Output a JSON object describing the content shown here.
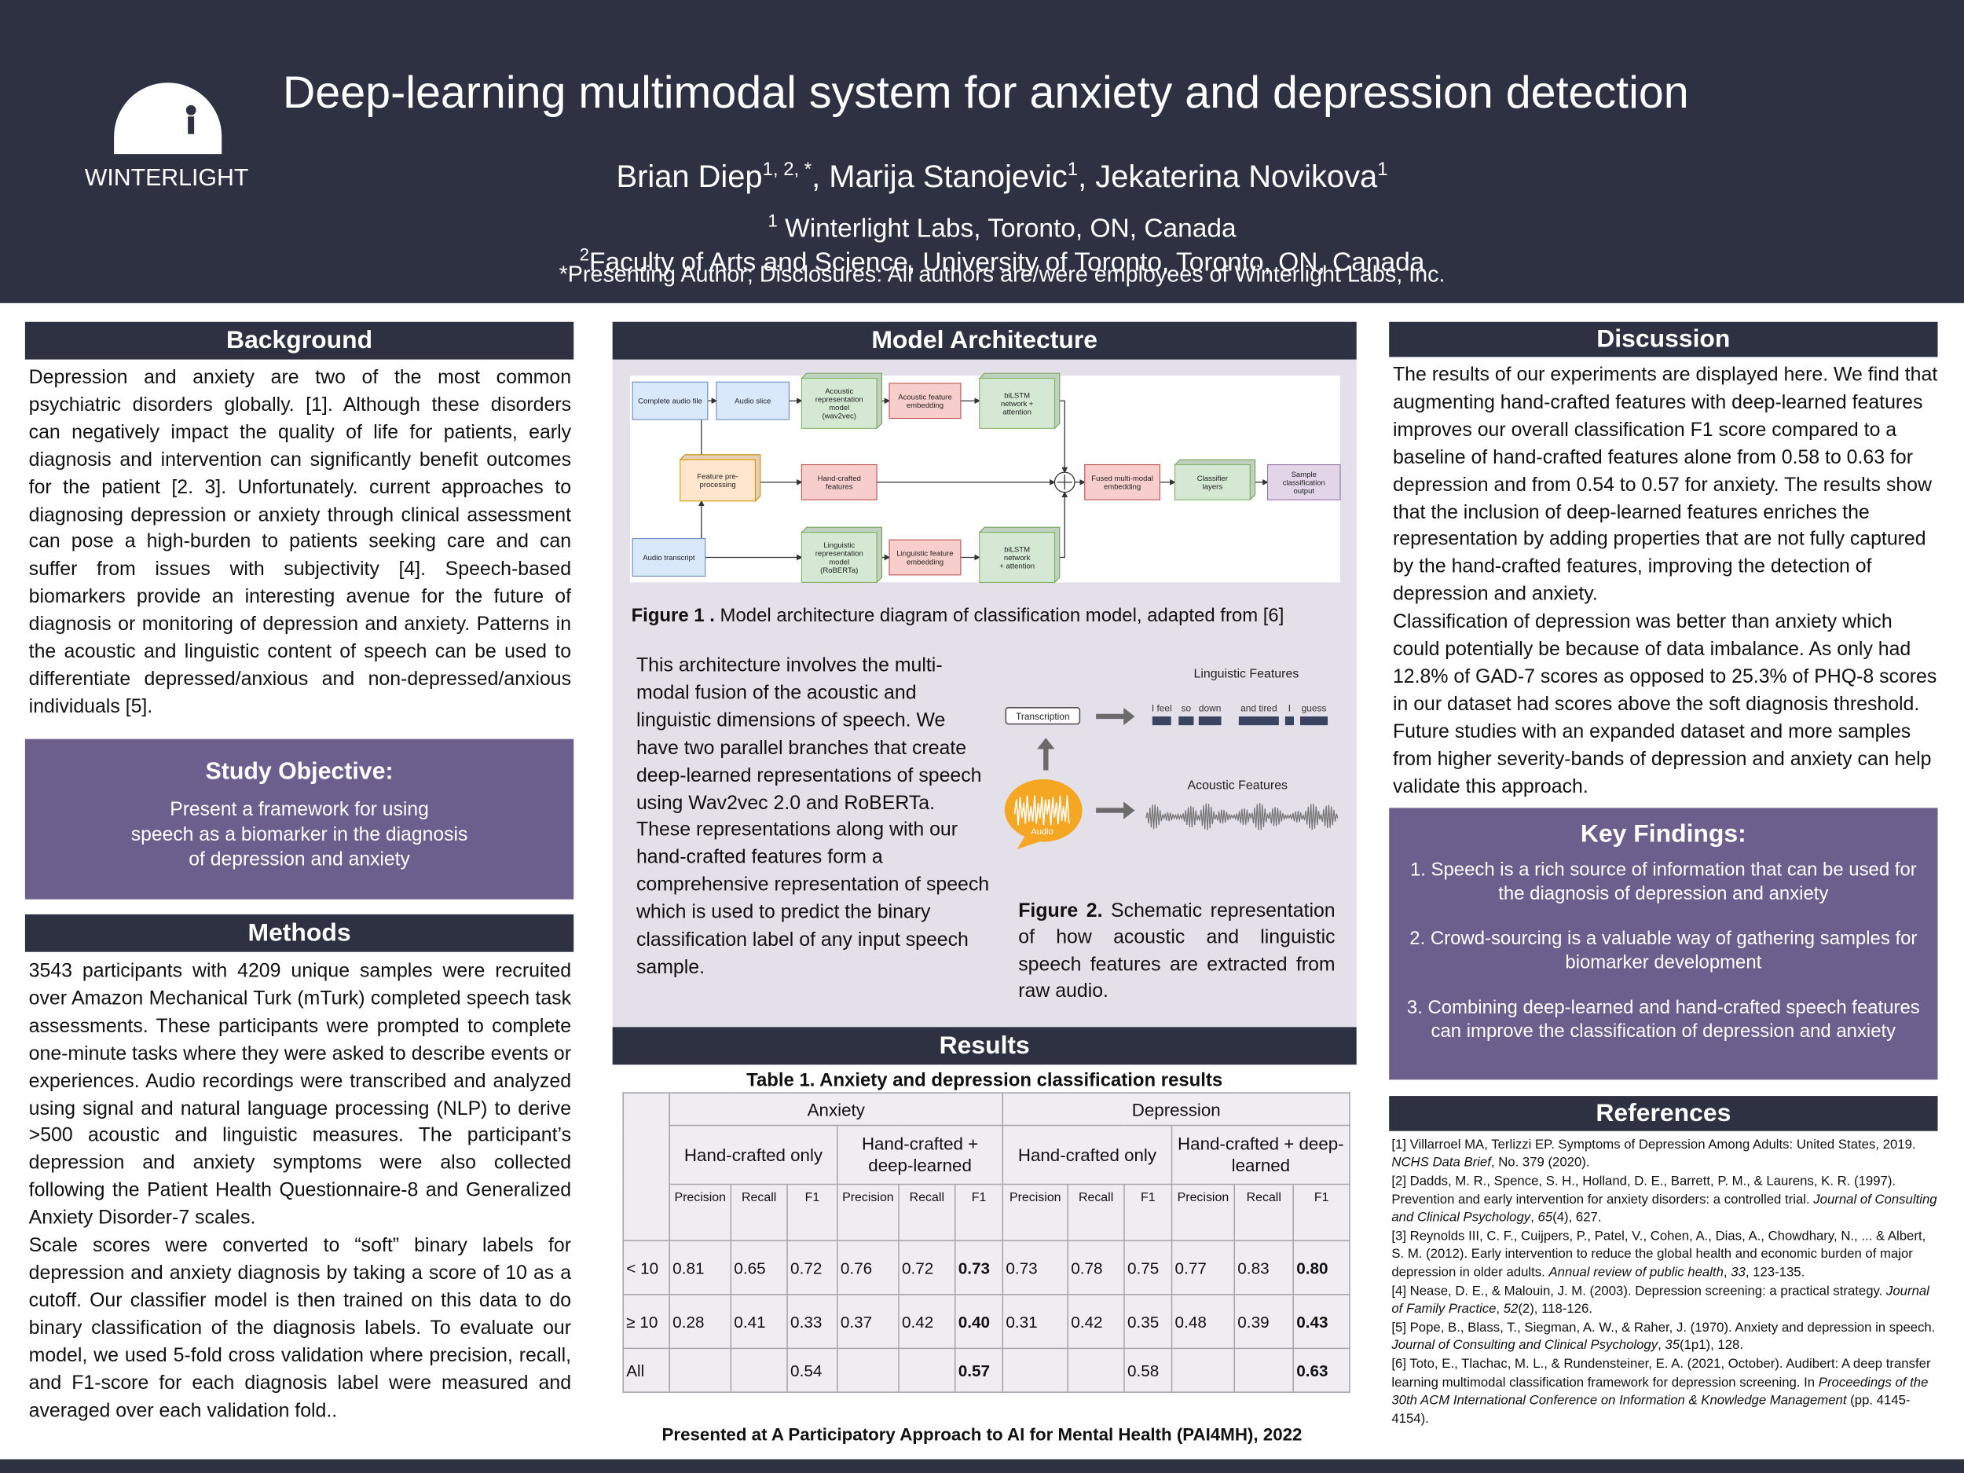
{
  "header": {
    "logo_text": "WINTERLIGHT",
    "title": "Deep-learning multimodal system for anxiety and depression detection",
    "authors": [
      {
        "name": "Brian Diep",
        "sup": "1, 2, *"
      },
      {
        "name": "Marija Stanojevic",
        "sup": "1"
      },
      {
        "name": "Jekaterina Novikova",
        "sup": "1"
      }
    ],
    "author_separator": ", ",
    "affiliations": [
      {
        "sup": "1",
        "text": " Winterlight Labs, Toronto, ON, Canada"
      },
      {
        "sup": "2",
        "text": "Faculty of Arts and Science, University of Toronto, Toronto, ON, Canada"
      }
    ],
    "disclosure": "*Presenting Author; Disclosures: All authors are/were employees of Winterlight Labs, Inc."
  },
  "background": {
    "heading": "Background",
    "text": "Depression and anxiety are two of the most common psychiatric disorders globally. [1].  Although these disorders can negatively impact the quality of life for patients, early diagnosis and intervention can significantly benefit outcomes for the patient [2. 3]. Unfortunately. current approaches to diagnosing depression or anxiety through clinical assessment can pose a high-burden to patients seeking care and can suffer from issues with subjectivity [4]. Speech-based biomarkers provide an interesting avenue for the future of diagnosis or monitoring of depression and anxiety. Patterns in the acoustic and linguistic content of speech can be used to differentiate depressed/anxious and non-depressed/anxious individuals [5]."
  },
  "objective": {
    "heading": "Study Objective:",
    "lines": [
      "Present a framework for using",
      "speech as a biomarker in the diagnosis",
      "of depression and anxiety"
    ]
  },
  "methods": {
    "heading": "Methods",
    "paragraphs": [
      "3543 participants with 4209 unique samples were recruited over Amazon Mechanical Turk (mTurk) completed speech task assessments. These participants were prompted to complete one-minute tasks where they were asked to describe events or experiences. Audio recordings were transcribed and analyzed using signal and natural language processing (NLP) to derive >500 acoustic and linguistic measures. The participant’s depression and anxiety symptoms were also collected following the Patient Health Questionnaire-8 and Generalized Anxiety Disorder-7 scales.",
      "Scale scores were converted to “soft” binary labels for depression and anxiety diagnosis by taking a score of 10 as a cutoff. Our classifier model is then trained on this data to do binary classification of the diagnosis labels. To evaluate our model, we used 5-fold cross validation where precision, recall, and F1-score for each diagnosis label were measured and averaged over each validation fold.."
    ]
  },
  "architecture": {
    "heading": "Model Architecture",
    "figure1": {
      "nodes": [
        {
          "lines": [
            "Complete audio file"
          ]
        },
        {
          "lines": [
            "Audio slice"
          ]
        },
        {
          "lines": [
            "Acoustic",
            "representation",
            "model",
            "(wav2vec)"
          ]
        },
        {
          "lines": [
            "Acoustic feature",
            "embedding"
          ]
        },
        {
          "lines": [
            "biLSTM",
            "network +",
            "attention"
          ]
        },
        {
          "lines": [
            "Feature pre-",
            "processing"
          ]
        },
        {
          "lines": [
            "Hand-crafted",
            "features"
          ]
        },
        {
          "lines": [
            "Fused multi-modal",
            "embedding"
          ]
        },
        {
          "lines": [
            "Classifier",
            "layers"
          ]
        },
        {
          "lines": [
            "Sample",
            "classification",
            "output"
          ]
        },
        {
          "lines": [
            "Audio transcript"
          ]
        },
        {
          "lines": [
            "Linguistic",
            "representation",
            "model",
            "(RoBERTa)"
          ]
        },
        {
          "lines": [
            "Linguistic feature",
            "embedding"
          ]
        },
        {
          "lines": [
            "biLSTM",
            "network",
            "+ attention"
          ]
        }
      ],
      "label": "Figure 1 .",
      "caption": " Model architecture diagram of classification model, adapted from [6]"
    },
    "paragraphs": [
      "This architecture involves the multi-modal fusion of the acoustic and linguistic dimensions of speech. We have two parallel branches that create deep-learned representations of speech using Wav2vec 2.0 and RoBERTa.",
      "These representations  along with our hand-crafted features form a comprehensive representation of speech which is used to predict the binary classification label of any input speech sample."
    ],
    "figure2": {
      "linguistic_title": "Linguistic Features",
      "transcription": "Transcription",
      "words": [
        "I feel",
        "so",
        "down",
        "and tired",
        "I",
        "guess"
      ],
      "acoustic_title": "Acoustic Features",
      "audio": "Audio",
      "label": "Figure 2.",
      "caption": " Schematic representation of how acoustic and linguistic speech features are extracted from raw audio."
    }
  },
  "results": {
    "heading": "Results",
    "table": {
      "title": "Table 1. Anxiety and depression classification results",
      "groups": [
        "Anxiety",
        "Depression"
      ],
      "subgroups": [
        "Hand-crafted only",
        "Hand-crafted + deep-learned",
        "Hand-crafted only",
        "Hand-crafted + deep-learned"
      ],
      "metrics": [
        "Precision",
        "Recall",
        "F1",
        "Precision",
        "Recall",
        "F1",
        "Precision",
        "Recall",
        "F1",
        "Precision",
        "Recall",
        "F1"
      ],
      "rows": [
        {
          "label": "< 10",
          "cells": [
            "0.81",
            "0.65",
            "0.72",
            "0.76",
            "0.72",
            "0.73",
            "0.73",
            "0.78",
            "0.75",
            "0.77",
            "0.83",
            "0.80"
          ]
        },
        {
          "label": "≥ 10",
          "cells": [
            "0.28",
            "0.41",
            "0.33",
            "0.37",
            "0.42",
            "0.40",
            "0.31",
            "0.42",
            "0.35",
            "0.48",
            "0.39",
            "0.43"
          ]
        },
        {
          "label": "All",
          "cells": [
            null,
            null,
            "0.54",
            null,
            null,
            "0.57",
            null,
            null,
            "0.58",
            null,
            null,
            "0.63"
          ]
        }
      ]
    }
  },
  "discussion": {
    "heading": "Discussion",
    "paragraphs": [
      "The results of our experiments are displayed here. We find that augmenting hand-crafted features with deep-learned features improves our overall classification F1 score compared to a baseline of hand-crafted features alone from 0.58 to 0.63 for depression and from 0.54 to 0.57 for anxiety. The results show that the inclusion of deep-learned features enriches the representation by adding properties that are not fully captured by the hand-crafted features, improving the detection of depression and anxiety.",
      "Classification of depression was better than anxiety which could potentially be because of data imbalance. As only had 12.8% of GAD-7 scores as opposed to  25.3% of PHQ-8 scores in our dataset had scores above the soft diagnosis threshold. Future studies with an expanded dataset and more samples from higher severity-bands of depression and anxiety can help validate this approach."
    ]
  },
  "key_findings": {
    "heading": "Key Findings:",
    "items": [
      "1. Speech is a rich source of information that can be used for the diagnosis of depression and anxiety",
      "2. Crowd-sourcing is a valuable way of gathering samples for biomarker development",
      "3. Combining deep-learned and hand-crafted speech features can improve the classification of depression and anxiety"
    ]
  },
  "references": {
    "heading": "References",
    "items": [
      [
        "[1] Villarroel MA, Terlizzi EP. Symptoms of Depression Among Adults: United States, 2019. ",
        "NCHS Data Brief",
        ", No. 379 (2020)."
      ],
      [
        "[2] Dadds, M. R., Spence, S. H., Holland, D. E., Barrett, P. M., & Laurens, K. R. (1997). Prevention and early intervention for anxiety disorders: a controlled trial. ",
        "Journal of Consulting and Clinical Psychology",
        ", ",
        "65",
        "(4), 627."
      ],
      [
        "[3] Reynolds III, C. F., Cuijpers, P., Patel, V., Cohen, A., Dias, A., Chowdhary, N., ... & Albert, S. M. (2012). Early intervention to reduce the global health and economic burden of major depression in older adults. ",
        "Annual review of public health",
        ", ",
        "33",
        ", 123-135."
      ],
      [
        "[4] Nease, D. E., & Malouin, J. M. (2003). Depression screening: a practical strategy. ",
        "Journal of Family Practice",
        ", ",
        "52",
        "(2), 118-126."
      ],
      [
        "[5] Pope, B., Blass, T., Siegman, A. W., & Raher, J. (1970). Anxiety and depression in speech. ",
        "Journal of Consulting and Clinical Psychology",
        ", ",
        "35",
        "(1p1), 128."
      ],
      [
        "[6] Toto, E., Tlachac, M. L., & Rundensteiner, E. A. (2021, October). Audibert: A deep transfer learning multimodal classification framework for depression screening. In ",
        "Proceedings of the 30th ACM International Conference on Information & Knowledge Management",
        " (pp. 4145-4154)."
      ]
    ]
  },
  "footer": "Presented at A Participatory Approach to AI for Mental Health (PAI4MH), 2022"
}
